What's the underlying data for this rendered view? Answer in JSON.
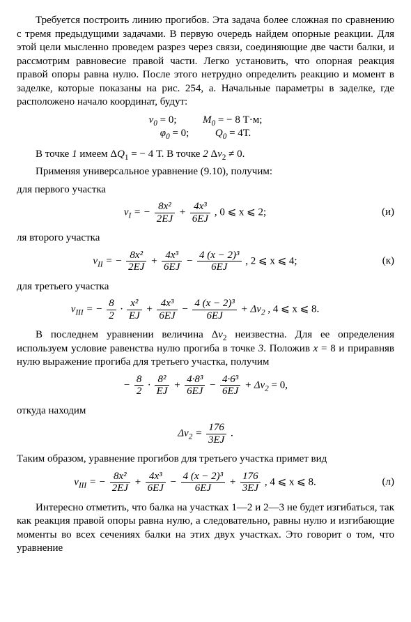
{
  "p1": "Требуется построить линию прогибов. Эта задача более сложная по сравнению с тремя предыдущими задачами. В первую очередь найдем опорные реакции. Для этой цели мысленно проведем разрез через связи, соединяющие две части балки, и рассмотрим равновесие правой части. Легко установить, что опорная реакция правой опоры равна нулю. После этого нетрудно определить реакцию и момент в заделке, которые показаны на рис. 254, а. Начальные параметры в заделке, где расположено начало координат, будут:",
  "eq1a": "v",
  "eq1a_sub": "0",
  "eq1a_rhs": " = 0;",
  "eq1b": "M",
  "eq1b_sub": "0",
  "eq1b_rhs": " = − 8 Т·м;",
  "eq1c": "φ",
  "eq1c_sub": "0",
  "eq1c_rhs": " = 0;",
  "eq1d": "Q",
  "eq1d_sub": "0",
  "eq1d_rhs": " = 4Т.",
  "p2a": "В точке ",
  "p2b": "1",
  "p2c": " имеем Δ",
  "p2d": "Q",
  "p2d_sub": "1",
  "p2e": " = − 4 Т. В точке ",
  "p2f": "2",
  "p2g": " Δ",
  "p2h": "v",
  "p2h_sub": "2",
  "p2i": " ≠ 0.",
  "p3": "Применяя универсальное уравнение (9.10), получим:",
  "p4": "для первого участка",
  "eqI_lhs_v": "v",
  "eqI_lhs_sub": "I",
  "eqI_t1_num": "8x²",
  "eqI_t1_den": "2EJ",
  "eqI_t2_num": "4x³",
  "eqI_t2_den": "6EJ",
  "eqI_range": ",   0 ⩽ x ⩽ 2;",
  "eqI_tag": "(и)",
  "p5": "ля второго участка",
  "eqII_lhs_v": "v",
  "eqII_lhs_sub": "II",
  "eqII_t1_num": "8x²",
  "eqII_t1_den": "2EJ",
  "eqII_t2_num": "4x³",
  "eqII_t2_den": "6EJ",
  "eqII_t3_num": "4 (x − 2)³",
  "eqII_t3_den": "6EJ",
  "eqII_range": ",   2 ⩽ x ⩽ 4;",
  "eqII_tag": "(к)",
  "p6": "для третьего участка",
  "eqIII_lhs_v": "v",
  "eqIII_lhs_sub": "III",
  "eqIII_t1a_num": "8",
  "eqIII_t1a_den": "2",
  "eqIII_t1b_num": "x²",
  "eqIII_t1b_den": "EJ",
  "eqIII_t2_num": "4x³",
  "eqIII_t2_den": "6EJ",
  "eqIII_t3_num": "4 (x − 2)³",
  "eqIII_t3_den": "6EJ",
  "eqIII_dv": " + Δv",
  "eqIII_dv_sub": "2",
  "eqIII_range": ",   4 ⩽ x ⩽ 8.",
  "p7a": "В последнем уравнении величина Δ",
  "p7b": "v",
  "p7b_sub": "2",
  "p7c": " неизвестна. Для ее определения используем условие равенства нулю прогиба в точке ",
  "p7d": "3",
  "p7e": ". Положив ",
  "p7f": "x",
  "p7g": " = 8 и приравняв нулю выражение прогиба для третьего участка, получим",
  "eq4_t1a_num": "8",
  "eq4_t1a_den": "2",
  "eq4_t1b_num": "8²",
  "eq4_t1b_den": "EJ",
  "eq4_t2_num": "4·8³",
  "eq4_t2_den": "6EJ",
  "eq4_t3_num": "4·6³",
  "eq4_t3_den": "6EJ",
  "eq4_dv": " + Δv",
  "eq4_dv_sub": "2",
  "eq4_rhs": " = 0,",
  "p8": "откуда находим",
  "eq5_lhs": "Δv",
  "eq5_lhs_sub": "2",
  "eq5_num": "176",
  "eq5_den": "3EJ",
  "eq5_tail": " .",
  "p9": "Таким образом, уравнение прогибов для третьего участка примет вид",
  "eqL_lhs_v": "v",
  "eqL_lhs_sub": "III",
  "eqL_t1_num": "8x²",
  "eqL_t1_den": "2EJ",
  "eqL_t2_num": "4x³",
  "eqL_t2_den": "6EJ",
  "eqL_t3_num": "4 (x − 2)³",
  "eqL_t3_den": "6EJ",
  "eqL_t4_num": "176",
  "eqL_t4_den": "3EJ",
  "eqL_range": ",   4 ⩽ x ⩽ 8.",
  "eqL_tag": "(л)",
  "p10": "Интересно отметить, что балка на участках 1—2 и 2—3 не будет изгибаться, так как реакция правой опоры равна нулю, а следовательно, равны нулю и изгибающие моменты во всех сечениях балки на этих двух участках. Это говорит о том, что уравнение"
}
